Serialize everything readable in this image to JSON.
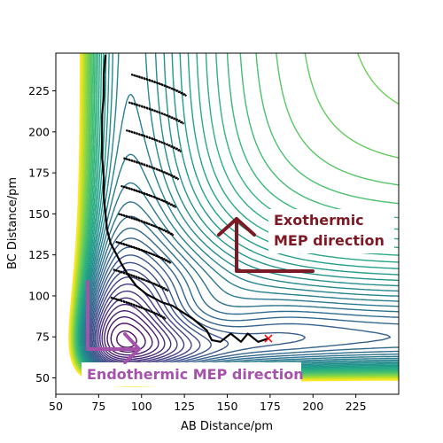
{
  "chart_data": {
    "type": "contour",
    "xlabel": "AB Distance/pm",
    "ylabel": "BC Distance/pm",
    "xlim": [
      50,
      250
    ],
    "ylim": [
      40,
      248
    ],
    "x_ticks": [
      "50",
      "75",
      "100",
      "125",
      "150",
      "175",
      "200",
      "225"
    ],
    "y_ticks": [
      "50",
      "75",
      "100",
      "125",
      "150",
      "175",
      "200",
      "225"
    ],
    "colormap": "viridis",
    "grid": false,
    "annotations": [
      {
        "text_lines": [
          "Exothermic",
          "MEP direction"
        ],
        "color": "#7b1a24"
      },
      {
        "text_lines": [
          "Endothermic MEP direction"
        ],
        "color": "#a552aa"
      }
    ],
    "end_marker": {
      "symbol": "x",
      "x": 174,
      "y": 74,
      "color": "#ff0000"
    },
    "trajectory": {
      "color": "#000000",
      "points": [
        [
          174,
          74
        ],
        [
          168,
          72
        ],
        [
          162,
          77
        ],
        [
          158,
          72
        ],
        [
          152,
          77
        ],
        [
          146,
          72
        ],
        [
          141,
          73
        ],
        [
          138,
          79
        ],
        [
          130,
          86
        ],
        [
          118,
          94
        ],
        [
          112,
          96
        ],
        [
          103,
          101
        ],
        [
          97,
          106
        ],
        [
          92,
          113
        ],
        [
          88,
          120
        ],
        [
          85,
          126
        ],
        [
          82,
          132
        ],
        [
          80,
          140
        ],
        [
          79,
          150
        ],
        [
          78,
          160
        ],
        [
          78,
          172
        ],
        [
          77,
          185
        ],
        [
          77,
          198
        ],
        [
          77,
          210
        ],
        [
          78,
          222
        ],
        [
          78,
          235
        ],
        [
          79,
          247
        ]
      ]
    }
  }
}
